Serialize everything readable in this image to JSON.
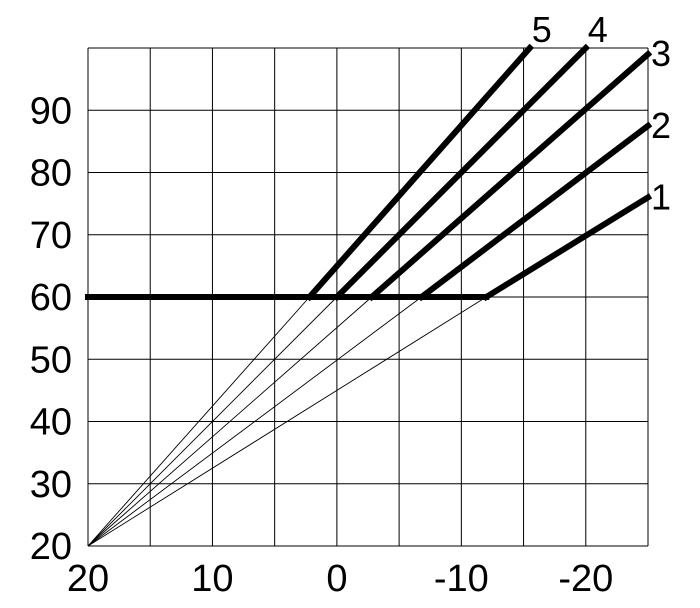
{
  "chart_data": {
    "type": "line",
    "title": "",
    "xlabel": "",
    "ylabel": "",
    "x_ticks": [
      "20",
      "10",
      "0",
      "-10",
      "-20"
    ],
    "y_ticks": [
      "20",
      "30",
      "40",
      "50",
      "60",
      "70",
      "80",
      "90"
    ],
    "xlim": [
      20,
      -25
    ],
    "ylim": [
      20,
      100
    ],
    "x_grid_step": 5,
    "y_grid_step": 10,
    "grid": true,
    "convergence_point": {
      "x": 20,
      "y": 20
    },
    "floor_level": 60,
    "floor_start_x": 20,
    "series": [
      {
        "name": "1",
        "knee": {
          "x": -12,
          "y": 60
        },
        "end": {
          "x": -25,
          "y": 76
        }
      },
      {
        "name": "2",
        "knee": {
          "x": -6.8,
          "y": 60
        },
        "end": {
          "x": -25,
          "y": 87.5
        }
      },
      {
        "name": "3",
        "knee": {
          "x": -2.8,
          "y": 60
        },
        "end": {
          "x": -25,
          "y": 99
        }
      },
      {
        "name": "4",
        "knee": {
          "x": 0,
          "y": 60
        },
        "end": {
          "x": -20,
          "y": 100
        }
      },
      {
        "name": "5",
        "knee": {
          "x": 2.2,
          "y": 60
        },
        "end": {
          "x": -15.5,
          "y": 100
        }
      }
    ]
  }
}
